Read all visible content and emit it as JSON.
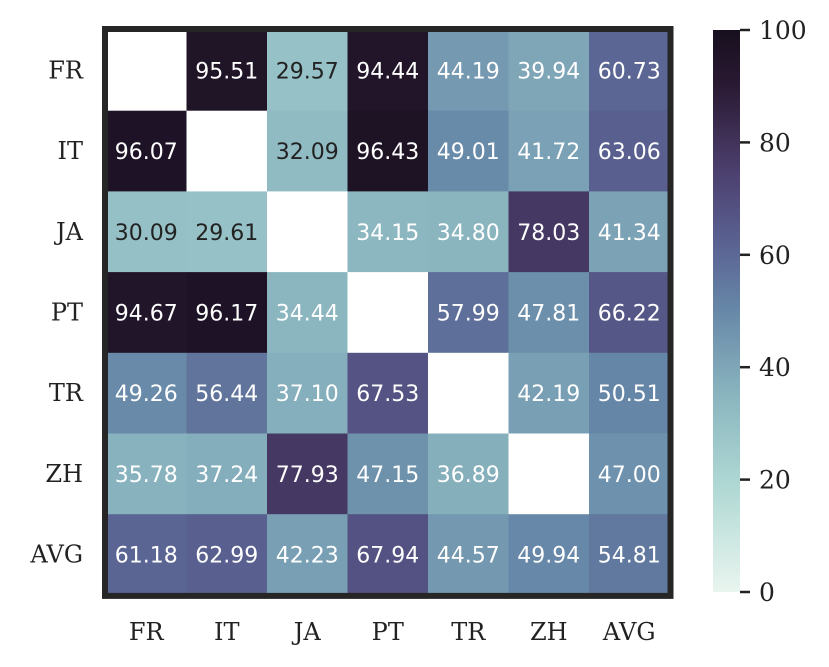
{
  "chart_data": {
    "type": "heatmap",
    "title": "",
    "xlabel": "",
    "ylabel": "",
    "rows": [
      "FR",
      "IT",
      "JA",
      "PT",
      "TR",
      "ZH",
      "AVG"
    ],
    "cols": [
      "FR",
      "IT",
      "JA",
      "PT",
      "TR",
      "ZH",
      "AVG"
    ],
    "values": [
      [
        null,
        95.51,
        29.57,
        94.44,
        44.19,
        39.94,
        60.73
      ],
      [
        96.07,
        null,
        32.09,
        96.43,
        49.01,
        41.72,
        63.06
      ],
      [
        30.09,
        29.61,
        null,
        34.15,
        34.8,
        78.03,
        41.34
      ],
      [
        94.67,
        96.17,
        34.44,
        null,
        57.99,
        47.81,
        66.22
      ],
      [
        49.26,
        56.44,
        37.1,
        67.53,
        null,
        42.19,
        50.51
      ],
      [
        35.78,
        37.24,
        77.93,
        47.15,
        36.89,
        null,
        47.0
      ],
      [
        61.18,
        62.99,
        42.23,
        67.94,
        44.57,
        49.94,
        54.81
      ]
    ],
    "colorbar": {
      "range": [
        0,
        100
      ],
      "ticks": [
        "0",
        "20",
        "40",
        "60",
        "80",
        "100"
      ]
    },
    "colormap": {
      "stops": [
        [
          0,
          "#e9f5ef"
        ],
        [
          20,
          "#acd6d2"
        ],
        [
          35,
          "#8ab5bf"
        ],
        [
          50,
          "#6788a8"
        ],
        [
          62,
          "#5a6292"
        ],
        [
          75,
          "#4c3f6e"
        ],
        [
          90,
          "#2a1a33"
        ],
        [
          100,
          "#170f1e"
        ]
      ]
    },
    "text_colors": {
      "light": "#ffffff",
      "dark": "#222222",
      "threshold": 33
    },
    "frame_color": "#262626"
  }
}
